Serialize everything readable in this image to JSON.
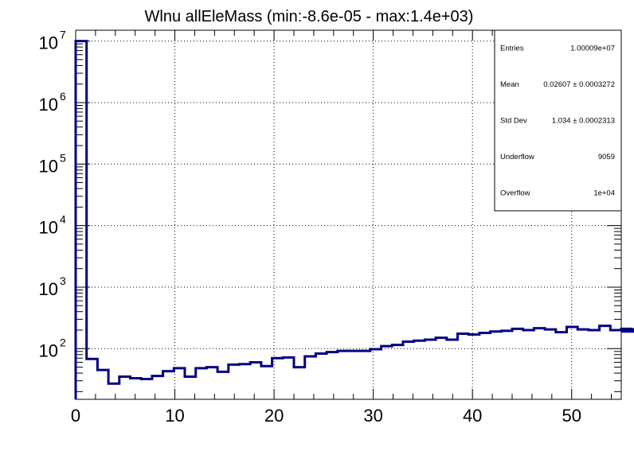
{
  "chart_data": {
    "type": "histogram",
    "title": "Wlnu allEleMass (min:-8.6e-05 - max:1.4e+03)",
    "xlabel": "",
    "ylabel": "",
    "xlim": [
      0,
      55
    ],
    "ylim": [
      15,
      15000000
    ],
    "yscale": "log",
    "grid": true,
    "line_color": "#000080",
    "x_ticks": [
      0,
      10,
      20,
      30,
      40,
      50
    ],
    "y_tick_exponents": [
      2,
      3,
      4,
      5,
      6,
      7
    ],
    "y_tick_base": "10",
    "bin_width": 1.1,
    "values": [
      10000000,
      68,
      45,
      27,
      35,
      33,
      32,
      36,
      43,
      48,
      35,
      48,
      50,
      42,
      55,
      56,
      60,
      52,
      70,
      72,
      50,
      75,
      83,
      88,
      92,
      92,
      92,
      98,
      110,
      115,
      130,
      135,
      140,
      150,
      140,
      175,
      170,
      180,
      190,
      195,
      210,
      200,
      215,
      205,
      185,
      225,
      205,
      200,
      235,
      200,
      210,
      210,
      205,
      190,
      195
    ]
  },
  "stats": {
    "rows": [
      {
        "label": "Entries",
        "value": "1.00009e+07"
      },
      {
        "label": "Mean",
        "value": "0.02607 ± 0.0003272"
      },
      {
        "label": "Std Dev",
        "value": "1.034 ± 0.0002313"
      },
      {
        "label": "Underflow",
        "value": "9059"
      },
      {
        "label": "Overflow",
        "value": "1e+04"
      }
    ]
  }
}
